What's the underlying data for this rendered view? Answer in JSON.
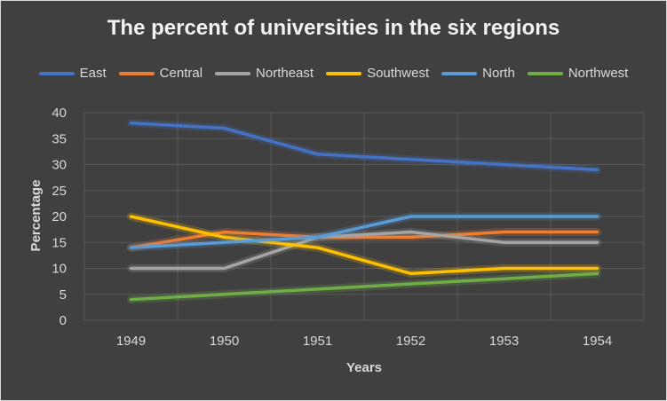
{
  "chart_data": {
    "type": "line",
    "title": "The percent of universities in the six regions",
    "xlabel": "Years",
    "ylabel": "Percentage",
    "x": [
      "1949",
      "1950",
      "1951",
      "1952",
      "1953",
      "1954"
    ],
    "ylim": [
      0,
      40
    ],
    "yticks": [
      "0",
      "5",
      "10",
      "15",
      "20",
      "25",
      "30",
      "35",
      "40"
    ],
    "grid": true,
    "legend_position": "top",
    "series": [
      {
        "name": "East",
        "color": "#4472C4",
        "values": [
          38,
          37,
          32,
          31,
          30,
          29
        ]
      },
      {
        "name": "Central",
        "color": "#ED7D31",
        "values": [
          14,
          17,
          16,
          16,
          17,
          17
        ]
      },
      {
        "name": "Northeast",
        "color": "#A5A5A5",
        "values": [
          10,
          10,
          16,
          17,
          15,
          15
        ]
      },
      {
        "name": "Southwest",
        "color": "#FFC000",
        "values": [
          20,
          16,
          14,
          9,
          10,
          10
        ]
      },
      {
        "name": "North",
        "color": "#5B9BD5",
        "values": [
          14,
          15,
          16,
          20,
          20,
          20
        ]
      },
      {
        "name": "Northwest",
        "color": "#70AD47",
        "values": [
          4,
          5,
          6,
          7,
          8,
          9
        ]
      }
    ]
  }
}
